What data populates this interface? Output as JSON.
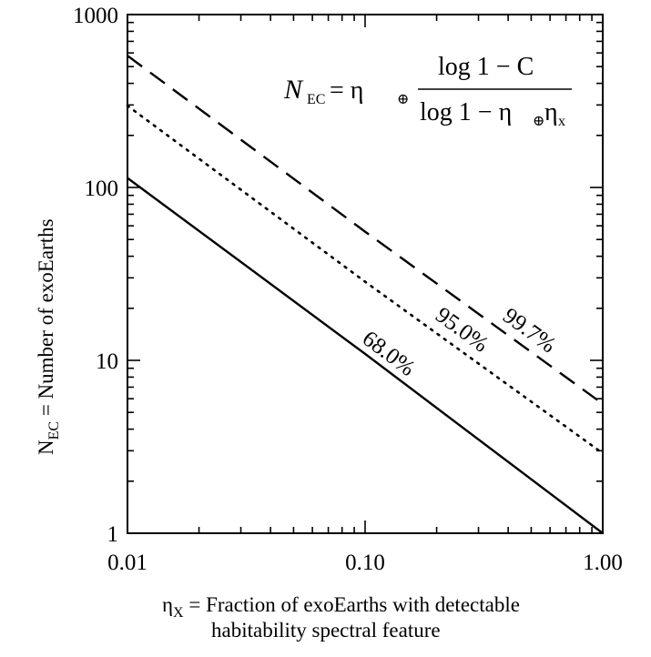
{
  "chart_data": {
    "type": "line",
    "xscale": "log",
    "yscale": "log",
    "xlim": [
      0.01,
      1.0
    ],
    "ylim": [
      1,
      1000
    ],
    "xticks": [
      {
        "value": 0.01,
        "label": "0.01"
      },
      {
        "value": 0.1,
        "label": "0.10"
      },
      {
        "value": 1.0,
        "label": "1.00"
      }
    ],
    "yticks": [
      {
        "value": 1,
        "label": "1"
      },
      {
        "value": 10,
        "label": "10"
      },
      {
        "value": 100,
        "label": "100"
      },
      {
        "value": 1000,
        "label": "1000"
      }
    ],
    "ylabel": {
      "main": "N",
      "sub": "EC",
      "rest": " = Number of exoEarths"
    },
    "xlabel": {
      "line1_main": "η",
      "line1_sub": "X",
      "line1_rest": " = Fraction of exoEarths with detectable",
      "line2": "habitability spectral feature"
    },
    "formula": {
      "lhs": "N",
      "lhs_sub": "EC",
      "eq": " = η",
      "eq_sub": "⊕",
      "numerator": "log 1 − C",
      "denominator": "log 1 − η",
      "den_sub1": "⊕",
      "den_eta": "η",
      "den_sub2": "x"
    },
    "series": [
      {
        "name": "68.0%",
        "style": "solid",
        "confidence": 0.68,
        "x": [
          0.01,
          0.1,
          1.0
        ],
        "y": [
          113.4,
          10.9,
          1.0
        ]
      },
      {
        "name": "95.0%",
        "style": "dotted",
        "confidence": 0.95,
        "x": [
          0.01,
          0.1,
          1.0
        ],
        "y": [
          297.0,
          28.5,
          2.9
        ]
      },
      {
        "name": "99.7%",
        "style": "dashed",
        "confidence": 0.997,
        "x": [
          0.01,
          0.1,
          1.0
        ],
        "y": [
          578.0,
          55.5,
          5.6
        ]
      }
    ],
    "grid": false,
    "colors": {
      "line": "#000000",
      "background": "#ffffff"
    }
  }
}
